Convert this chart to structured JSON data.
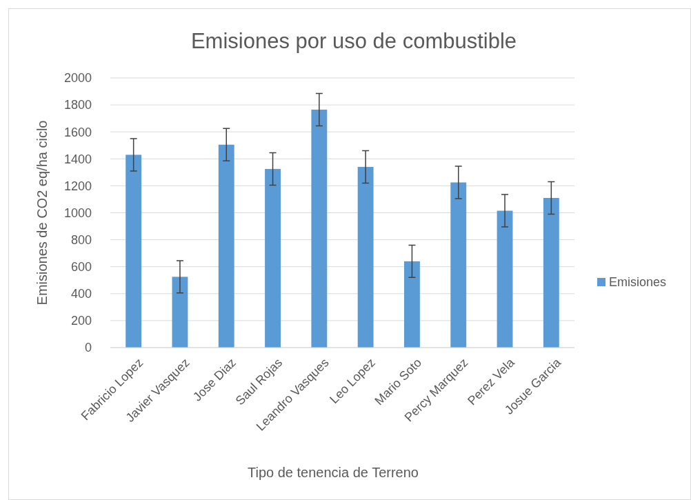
{
  "chart_data": {
    "type": "bar",
    "title": "Emisiones por uso de combustible",
    "xlabel": "Tipo de tenencia de Terreno",
    "ylabel": "Emisiones de CO2 eq/ha ciclo",
    "categories": [
      "Fabricio Lopez",
      "Javier Vasquez",
      "Jose Diaz",
      "Saul Rojas",
      "Leandro Vasques",
      "Leo Lopez",
      "Mario Soto",
      "Percy Marquez",
      "Perez Vela",
      "Josue Garcia"
    ],
    "series": [
      {
        "name": "Emisiones",
        "color": "#5b9bd5",
        "values": [
          1430,
          525,
          1505,
          1325,
          1765,
          1340,
          640,
          1225,
          1015,
          1110
        ],
        "errors": [
          120,
          120,
          120,
          120,
          120,
          120,
          120,
          120,
          120,
          120
        ]
      }
    ],
    "ylim": [
      0,
      2000
    ],
    "yticks": [
      0,
      200,
      400,
      600,
      800,
      1000,
      1200,
      1400,
      1600,
      1800,
      2000
    ],
    "grid": "y",
    "legend": "right"
  }
}
